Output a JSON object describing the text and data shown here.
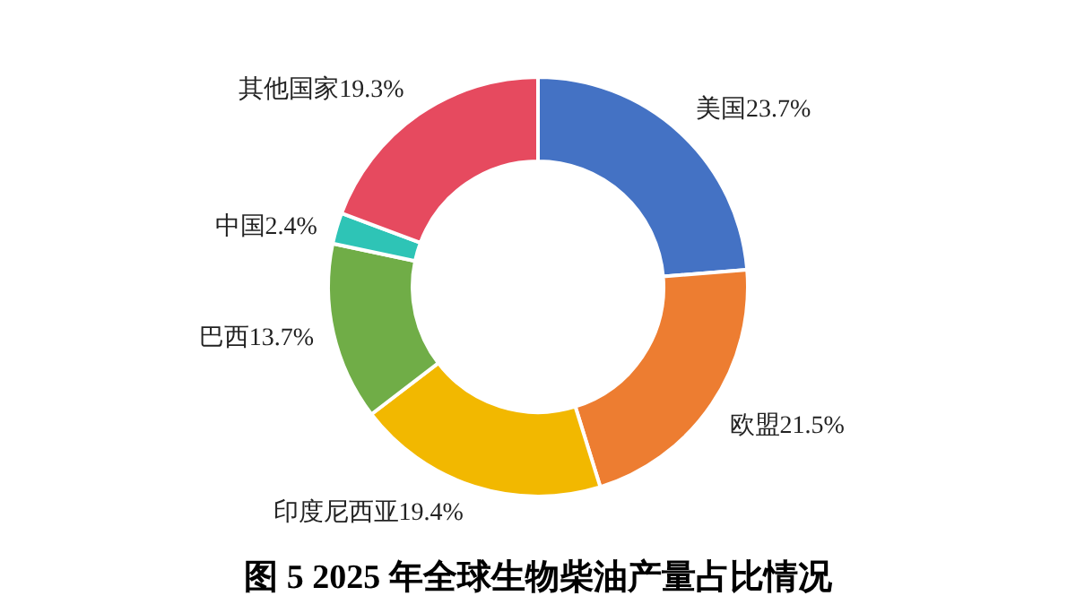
{
  "chart_data": {
    "type": "donut",
    "title": "图 5 2025 年全球生物柴油产量占比情况",
    "categories": [
      "美国",
      "欧盟",
      "印度尼西亚",
      "巴西",
      "中国",
      "其他国家"
    ],
    "values": [
      23.7,
      21.5,
      19.4,
      13.7,
      2.4,
      19.3
    ],
    "value_labels": [
      "23.7%",
      "21.5%",
      "19.4%",
      "13.7%",
      "2.4%",
      "19.3%"
    ],
    "colors": [
      "#4472c4",
      "#ed7d31",
      "#f2b800",
      "#70ad47",
      "#2ec4b6",
      "#e64a5f"
    ]
  }
}
